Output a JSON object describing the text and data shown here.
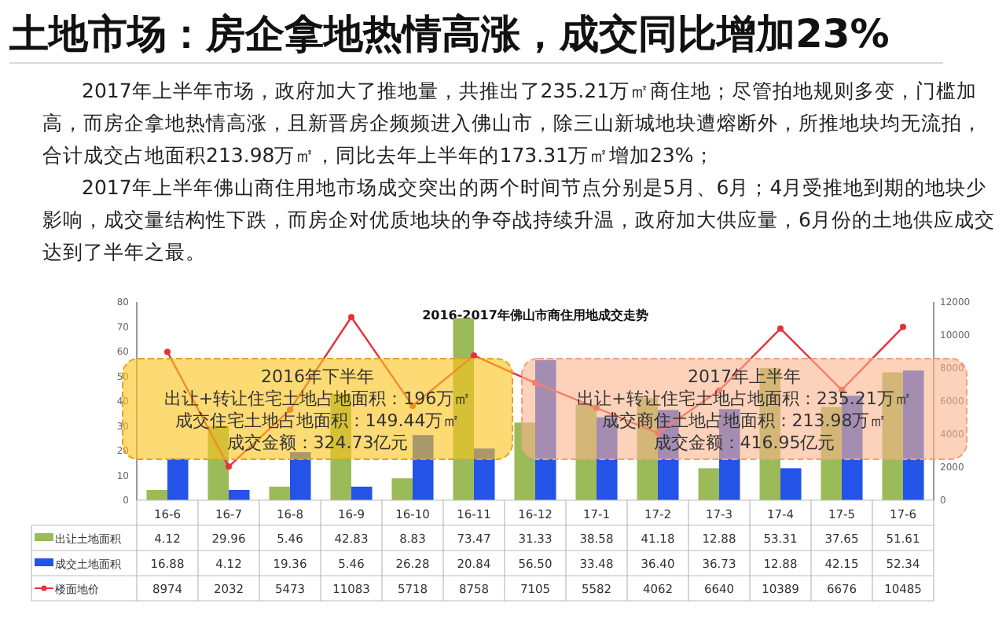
{
  "chart_data": {
    "type": "bar",
    "title": "2016-2017年佛山市商住用地成交走势",
    "categories": [
      "16-6",
      "16-7",
      "16-8",
      "16-9",
      "16-10",
      "16-11",
      "16-12",
      "17-1",
      "17-2",
      "17-3",
      "17-4",
      "17-5",
      "17-6"
    ],
    "series": [
      {
        "name": "出让土地面积",
        "color": "#9bbb59",
        "values": [
          4.12,
          29.96,
          5.46,
          42.83,
          8.83,
          73.47,
          31.33,
          38.58,
          41.18,
          12.88,
          53.31,
          37.65,
          51.61
        ],
        "value_labels": [
          "4.12",
          "29.96",
          "5.46",
          "42.83",
          "8.83",
          "73.47",
          "31.33",
          "38.58",
          "41.18",
          "12.88",
          "53.31",
          "37.65",
          "51.61"
        ]
      },
      {
        "name": "成交土地面积",
        "color": "#2453e8",
        "values": [
          16.88,
          4.12,
          19.36,
          5.46,
          26.28,
          20.84,
          56.5,
          33.48,
          36.4,
          36.73,
          12.88,
          42.15,
          52.34
        ],
        "value_labels": [
          "16.88",
          "4.12",
          "19.36",
          "5.46",
          "26.28",
          "20.84",
          "56.50",
          "33.48",
          "36.40",
          "36.73",
          "12.88",
          "42.15",
          "52.34"
        ]
      },
      {
        "name": "楼面地价",
        "type": "line",
        "axis": "y2",
        "color": "#e8303a",
        "marker": "circle",
        "values": [
          8974,
          2032,
          5473,
          11083,
          5718,
          8758,
          7105,
          5582,
          4062,
          6640,
          10389,
          6676,
          10485
        ],
        "value_labels": [
          "8974",
          "2032",
          "5473",
          "11083",
          "5718",
          "8758",
          "7105",
          "5582",
          "4062",
          "6640",
          "10389",
          "6676",
          "10485"
        ]
      }
    ],
    "ylim": [
      0,
      80
    ],
    "yticks": [
      0,
      10,
      20,
      30,
      40,
      50,
      60,
      70,
      80
    ],
    "y2lim": [
      0,
      12000
    ],
    "y2ticks": [
      0,
      2000,
      4000,
      6000,
      8000,
      10000,
      12000
    ],
    "legend": "bottom left",
    "grid": false,
    "annotations": [
      "土地市场：房企拿地热情高涨，成交同比增加23%",
      "2017年上半年市场，政府加大了推地量，共推出了235.21万㎡商住地；尽管拍地规则多变，门槛加高，而房企拿地热情高涨，且新晋房企频频进入佛山市，除三山新城地块遭熔断外，所推地块均无流拍，合计成交占地面积213.98万㎡，同比去年上半年的173.31万㎡增加23%；",
      "2017年上半年佛山商住用地市场成交突出的两个时间节点分别是5月、6月；4月受推地到期的地块少影响，成交量结构性下跌，而房企对优质地块的争夺战持续升温，政府加大供应量，6月份的土地供应成交达到了半年之最。",
      "2016年下半年",
      "出让+转让住宅土地占地面积：196万㎡",
      "成交住宅土地占地面积：149.44万㎡",
      "成交金额：324.73亿元",
      "2017年上半年",
      "出让+转让住宅土地占地面积：235.21万㎡",
      "成交商住土地占地面积：213.98万㎡",
      "成交金额：416.95亿元"
    ]
  }
}
